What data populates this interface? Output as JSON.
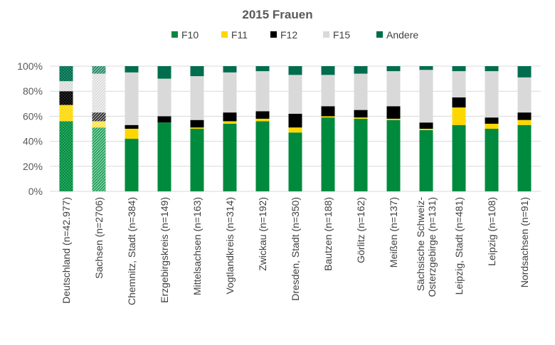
{
  "chart_data": {
    "type": "bar",
    "stacked": true,
    "percent": true,
    "title": "2015 Frauen",
    "legend_position": "top",
    "ylim": [
      0,
      100
    ],
    "yticks": [
      "0%",
      "20%",
      "40%",
      "60%",
      "80%",
      "100%"
    ],
    "colors": {
      "F10": "#008a3e",
      "F11": "#ffd700",
      "F12": "#000000",
      "F15": "#d9d9d9",
      "Andere": "#006d4e"
    },
    "categories": [
      [
        "Deutschland (n=42.977)"
      ],
      [
        "Sachsen (n=2706)"
      ],
      [
        "Chemnitz, Stadt (n=384)"
      ],
      [
        "Erzgebirgskreis (n=149)"
      ],
      [
        "Mittelsachsen (n=163)"
      ],
      [
        "Vogtlandkreis (n=314)"
      ],
      [
        "Zwickau (n=192)"
      ],
      [
        "Dresden, Stadt (n=350)"
      ],
      [
        "Bautzen (n=188)"
      ],
      [
        "Görlitz (n=162)"
      ],
      [
        "Meißen (n=137)"
      ],
      [
        "Sächsische Schweiz-",
        "Osterzgebirge (n=131)"
      ],
      [
        "Leipzig, Stadt (n=481)"
      ],
      [
        "Leipzig (n=108)"
      ],
      [
        "Nordsachsen (n=91)"
      ]
    ],
    "series": [
      {
        "name": "F10",
        "values": [
          56,
          51,
          42,
          55,
          50,
          54,
          56,
          47,
          59,
          58,
          57,
          49,
          53,
          50,
          53
        ]
      },
      {
        "name": "F11",
        "values": [
          13,
          5,
          8,
          0,
          1,
          2,
          2,
          4,
          1,
          1,
          1,
          1,
          14,
          4,
          4
        ]
      },
      {
        "name": "F12",
        "values": [
          11,
          7,
          3,
          5,
          6,
          7,
          6,
          11,
          8,
          6,
          10,
          5,
          8,
          5,
          6
        ]
      },
      {
        "name": "F15",
        "values": [
          8,
          31,
          42,
          30,
          35,
          32,
          32,
          31,
          25,
          29,
          28,
          42,
          21,
          37,
          28
        ]
      },
      {
        "name": "Andere",
        "values": [
          12,
          6,
          5,
          10,
          8,
          5,
          4,
          7,
          7,
          6,
          4,
          3,
          4,
          4,
          9
        ]
      }
    ],
    "patterned_categories": [
      0,
      1
    ]
  }
}
